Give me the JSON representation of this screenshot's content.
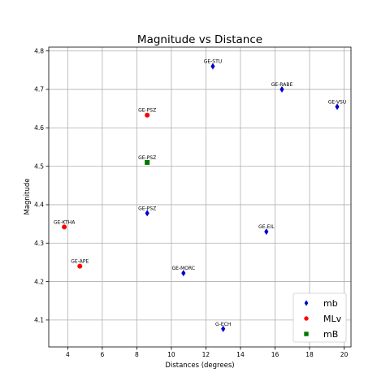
{
  "chart_data": {
    "type": "scatter",
    "title": "Magnitude vs Distance",
    "xlabel": "Distances (degrees)",
    "ylabel": "Magnitude",
    "xlim": [
      2.9,
      20.4
    ],
    "ylim": [
      4.03,
      4.81
    ],
    "xticks": [
      4,
      6,
      8,
      10,
      12,
      14,
      16,
      18,
      20
    ],
    "yticks": [
      4.1,
      4.2,
      4.3,
      4.4,
      4.5,
      4.6,
      4.7,
      4.8
    ],
    "grid": true,
    "legend_position": "lower-right",
    "series": [
      {
        "name": "mb",
        "marker": "diamond",
        "color": "#0000cc",
        "points": [
          {
            "label": "GE-STU",
            "x": 12.4,
            "y": 4.76
          },
          {
            "label": "GE-RABE",
            "x": 16.4,
            "y": 4.7
          },
          {
            "label": "GE-VSU",
            "x": 19.6,
            "y": 4.655
          },
          {
            "label": "GE-PSZ",
            "x": 8.6,
            "y": 4.378
          },
          {
            "label": "GE-EIL",
            "x": 15.5,
            "y": 4.33
          },
          {
            "label": "GE-MORC",
            "x": 10.7,
            "y": 4.222
          },
          {
            "label": "G-ECH",
            "x": 13.0,
            "y": 4.077
          }
        ]
      },
      {
        "name": "MLv",
        "marker": "circle",
        "color": "#ff0000",
        "points": [
          {
            "label": "GE-PSZ",
            "x": 8.6,
            "y": 4.633
          },
          {
            "label": "GE-KTHA",
            "x": 3.8,
            "y": 4.342
          },
          {
            "label": "GE-APE",
            "x": 4.7,
            "y": 4.24
          }
        ]
      },
      {
        "name": "mB",
        "marker": "square",
        "color": "#007700",
        "points": [
          {
            "label": "GE-PSZ",
            "x": 8.6,
            "y": 4.51
          }
        ]
      }
    ]
  }
}
